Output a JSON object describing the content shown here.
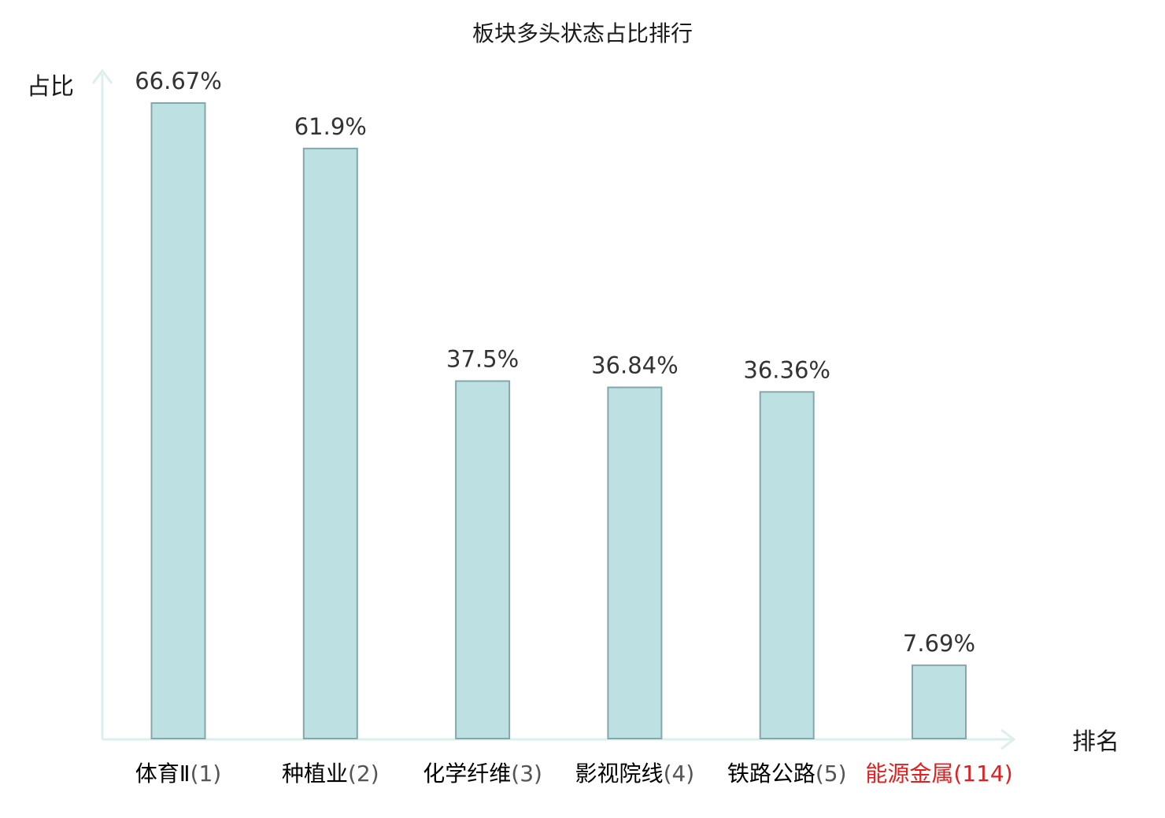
{
  "chart_data": {
    "type": "bar",
    "title": "板块多头状态占比排行",
    "ylabel": "占比",
    "xlabel": "排名",
    "ylim": [
      0,
      70
    ],
    "grid": false,
    "categories": [
      {
        "name": "体育Ⅱ",
        "rank": "(1)",
        "highlight": false
      },
      {
        "name": "种植业",
        "rank": "(2)",
        "highlight": false
      },
      {
        "name": "化学纤维",
        "rank": "(3)",
        "highlight": false
      },
      {
        "name": "影视院线",
        "rank": "(4)",
        "highlight": false
      },
      {
        "name": "铁路公路",
        "rank": "(5)",
        "highlight": false
      },
      {
        "name": "能源金属",
        "rank": "(114)",
        "highlight": true
      }
    ],
    "values": [
      66.67,
      61.9,
      37.5,
      36.84,
      36.36,
      7.69
    ],
    "value_labels": [
      "66.67%",
      "61.9%",
      "37.5%",
      "36.84%",
      "36.36%",
      "7.69%"
    ]
  },
  "colors": {
    "bar_fill": "#bde0e3",
    "bar_stroke": "#84a7a9",
    "axis": "#dcefed",
    "text": "#1a1a1a",
    "value_text": "#333333",
    "name_text": "#000000",
    "rank_text": "#555555",
    "highlight_text": "#e02020"
  }
}
